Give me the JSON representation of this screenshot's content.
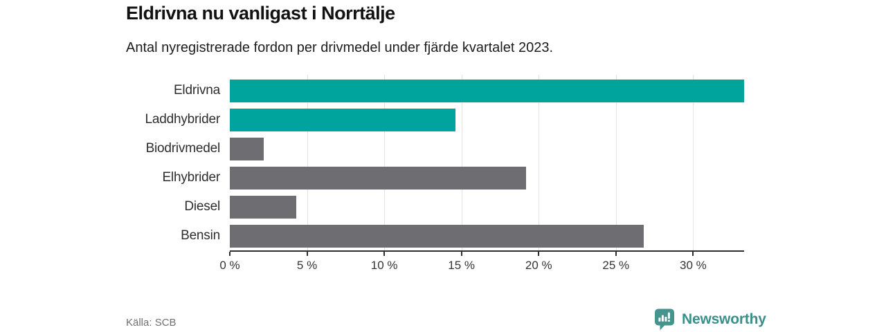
{
  "header": {
    "title": "Eldrivna nu vanligast i Norrtälje",
    "subtitle": "Antal nyregistrerade fordon per drivmedel under fjärde kvartalet 2023."
  },
  "footer": {
    "source": "Källa: SCB",
    "brand": "Newsworthy"
  },
  "colors": {
    "accent": "#00a49c",
    "neutral": "#6e6d72",
    "gridline": "#e3e3e3",
    "axis": "#2e2e2e",
    "brand": "#3a8f8a"
  },
  "chart_data": {
    "type": "bar",
    "orientation": "horizontal",
    "title": "Eldrivna nu vanligast i Norrtälje",
    "subtitle": "Antal nyregistrerade fordon per drivmedel under fjärde kvartalet 2023.",
    "categories": [
      "Eldrivna",
      "Laddhybrider",
      "Biodrivmedel",
      "Elhybrider",
      "Diesel",
      "Bensin"
    ],
    "values": [
      33.3,
      14.6,
      2.2,
      19.2,
      4.3,
      26.8
    ],
    "unit": "%",
    "bar_color_keys": [
      "accent",
      "accent",
      "neutral",
      "neutral",
      "neutral",
      "neutral"
    ],
    "xlim": [
      0,
      33.3
    ],
    "xticks": [
      0,
      5,
      10,
      15,
      20,
      25,
      30
    ],
    "xtick_labels": [
      "0 %",
      "5 %",
      "10 %",
      "15 %",
      "20 %",
      "25 %",
      "30 %"
    ],
    "grid": "vertical-only",
    "legend": "none",
    "source": "Källa: SCB"
  }
}
